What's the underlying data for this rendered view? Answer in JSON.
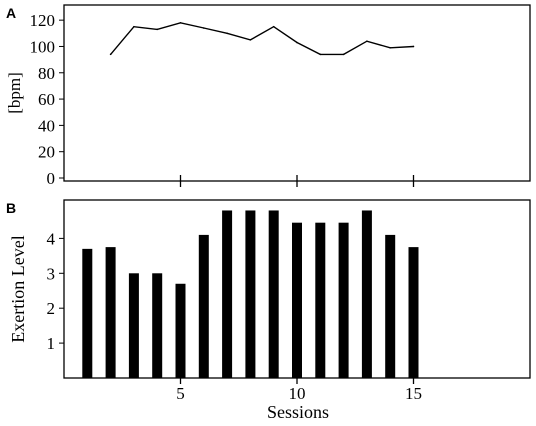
{
  "chart_data": [
    {
      "panel_label": "A",
      "type": "line",
      "ylabel": "[bpm]",
      "ylim": [
        0,
        130
      ],
      "y_ticks": [
        "0",
        "20",
        "40",
        "60",
        "80",
        "100",
        "120"
      ],
      "xlim": [
        0,
        20
      ],
      "x_ticks": [
        "5",
        "10",
        "15"
      ],
      "x": [
        2,
        3,
        4,
        5,
        6,
        7,
        8,
        9,
        10,
        11,
        12,
        13,
        14,
        15
      ],
      "values": [
        94,
        115,
        113,
        118,
        114,
        110,
        105,
        115,
        103,
        94,
        94,
        104,
        99,
        100
      ],
      "grid": false
    },
    {
      "panel_label": "B",
      "type": "bar",
      "xlabel": "Sessions",
      "ylabel": "Exertion Level",
      "ylim": [
        0,
        5.1
      ],
      "y_ticks": [
        "1",
        "2",
        "3",
        "4"
      ],
      "xlim": [
        0,
        20
      ],
      "x_ticks": [
        "5",
        "10",
        "15"
      ],
      "x": [
        1,
        2,
        3,
        4,
        5,
        6,
        7,
        8,
        9,
        10,
        11,
        12,
        13,
        14,
        15
      ],
      "values": [
        3.7,
        3.75,
        3.0,
        3.0,
        2.7,
        4.1,
        4.8,
        4.8,
        4.8,
        4.45,
        4.45,
        4.45,
        4.8,
        4.1,
        3.75
      ],
      "grid": false
    }
  ]
}
